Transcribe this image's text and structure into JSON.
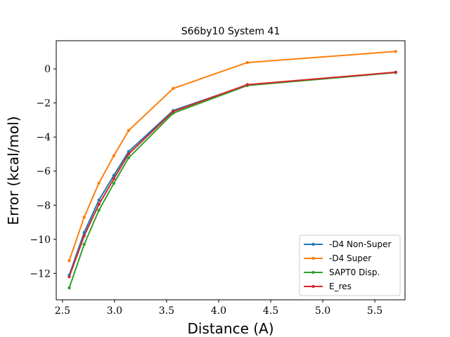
{
  "chart_data": {
    "type": "line",
    "title": "S66by10 System 41",
    "xlabel": "Distance (A)",
    "ylabel": "Error (kcal/mol)",
    "xlim": [
      2.44,
      5.79
    ],
    "ylim": [
      -13.55,
      1.65
    ],
    "x_ticks": [
      2.5,
      3.0,
      3.5,
      4.0,
      4.5,
      5.0,
      5.5
    ],
    "x_tick_labels": [
      "2.5",
      "3.0",
      "3.5",
      "4.0",
      "4.5",
      "5.0",
      "5.5"
    ],
    "y_ticks": [
      0,
      -2,
      -4,
      -6,
      -8,
      -10,
      -12
    ],
    "y_tick_labels": [
      "0",
      "−2",
      "−4",
      "−6",
      "−8",
      "−10",
      "−12"
    ],
    "grid": false,
    "legend_position": "lower-right",
    "x": [
      2.565,
      2.708,
      2.85,
      2.993,
      3.135,
      3.563,
      4.275,
      5.7
    ],
    "series": [
      {
        "name": "-D4 Non-Super",
        "color": "#1f77b4",
        "values": [
          -12.1,
          -9.6,
          -7.7,
          -6.25,
          -4.85,
          -2.45,
          -0.95,
          -0.2
        ]
      },
      {
        "name": "-D4 Super",
        "color": "#ff7f0e",
        "values": [
          -11.25,
          -8.7,
          -6.7,
          -5.1,
          -3.62,
          -1.15,
          0.37,
          1.02
        ]
      },
      {
        "name": "SAPT0 Disp.",
        "color": "#2ca02c",
        "values": [
          -12.85,
          -10.3,
          -8.3,
          -6.72,
          -5.22,
          -2.6,
          -0.98,
          -0.22
        ]
      },
      {
        "name": "E_res",
        "color": "#d62728",
        "values": [
          -12.2,
          -9.8,
          -7.95,
          -6.45,
          -5.0,
          -2.5,
          -0.93,
          -0.2
        ]
      }
    ]
  }
}
